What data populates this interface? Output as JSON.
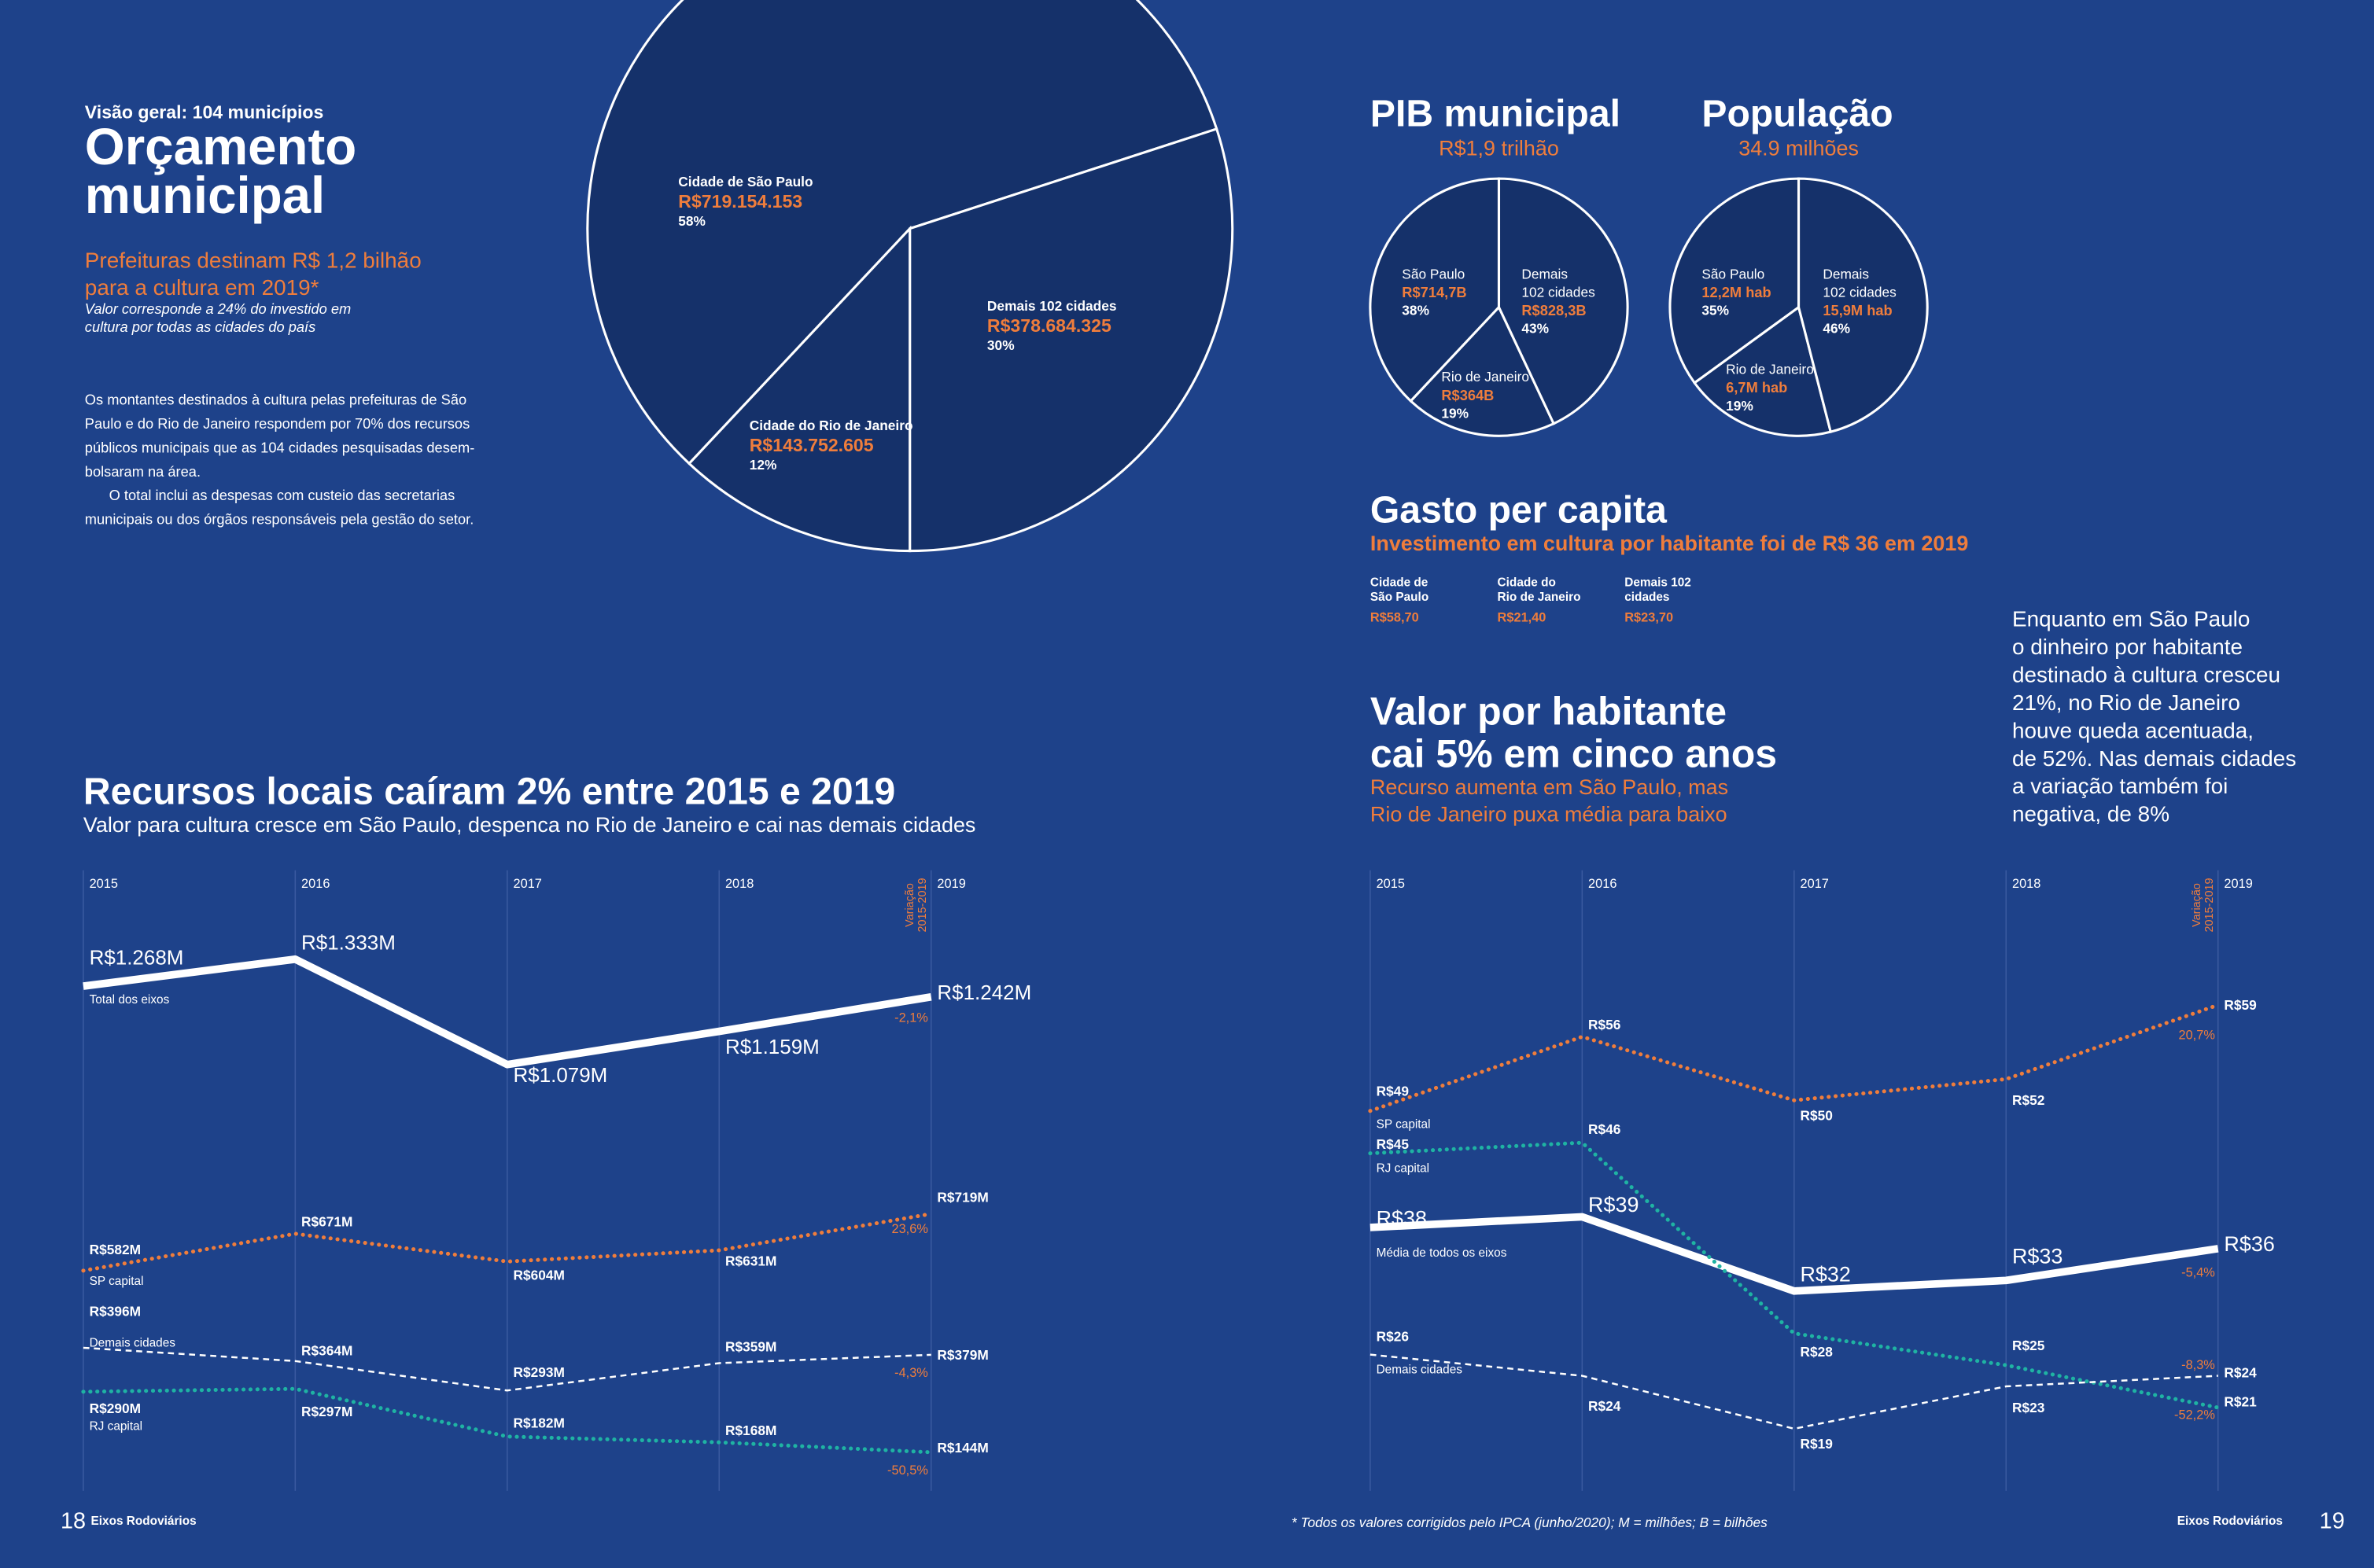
{
  "page": {
    "left": {
      "kicker": "Visão geral: 104 municípios",
      "title": [
        "Orçamento",
        "municipal"
      ],
      "highlight": [
        "Prefeituras destinam R$ 1,2 bilhão",
        "para a cultura em 2019*"
      ],
      "note": [
        "Valor corresponde a 24% do investido em",
        "cultura por todas as cidades do país"
      ],
      "body": [
        "Os montantes destinados à cultura pelas prefeituras de São",
        "Paulo e do Rio de Janeiro respondem por 70% dos recursos",
        "públicos municipais que as 104 cidades pesquisadas desem-",
        "bolsaram na área.",
        "O total inclui as despesas com custeio das secretarias",
        "municipais ou dos órgãos responsáveis pela gestão do setor."
      ]
    },
    "pib": {
      "title": "PIB municipal",
      "subtitle": "R$1,9 trilhão"
    },
    "pop": {
      "title": "População",
      "subtitle": "34.9 milhões"
    },
    "per_capita": {
      "title": "Gasto per capita",
      "subtitle": "Investimento em cultura por habitante foi de R$ 36 em 2019",
      "items": [
        {
          "name": [
            "Cidade de",
            "São Paulo"
          ],
          "value": "R$58,70"
        },
        {
          "name": [
            "Cidade do",
            "Rio de Janeiro"
          ],
          "value": "R$21,40"
        },
        {
          "name": [
            "Demais 102",
            "cidades"
          ],
          "value": "R$23,70"
        }
      ]
    },
    "side_text": [
      "Enquanto em São Paulo",
      "o dinheiro por habitante",
      "destinado à cultura cresceu",
      "21%, no Rio de Janeiro",
      "houve queda acentuada,",
      "de 52%. Nas demais cidades",
      "a variação também foi",
      "negativa, de 8%"
    ],
    "footer": {
      "left_page": "18",
      "left_label": "Eixos Rodoviários",
      "note": "*  Todos os valores corrigidos pelo IPCA (junho/2020); M = milhões; B = bilhões",
      "right_label": "Eixos Rodoviários",
      "right_page": "19"
    }
  },
  "chart_data": [
    {
      "type": "pie",
      "categories": [
        [
          "Cidade de São Paulo"
        ],
        [
          "Cidade do Rio de Janeiro"
        ],
        [
          "Demais 102 cidades"
        ]
      ],
      "amounts": [
        "R$719.154.153",
        "R$143.752.605",
        "R$378.684.325"
      ],
      "values": [
        58,
        12,
        30
      ],
      "value_labels": [
        "58%",
        "12%",
        "30%"
      ],
      "color": "#15316a",
      "edge_color": "#ffffff"
    },
    {
      "type": "pie",
      "categories": [
        [
          "São Paulo"
        ],
        [
          "Rio de Janeiro"
        ],
        [
          "Demais",
          "102 cidades"
        ]
      ],
      "amounts": [
        "R$714,7B",
        "R$364B",
        "R$828,3B"
      ],
      "values": [
        38,
        19,
        43
      ],
      "value_labels": [
        "38%",
        "19%",
        "43%"
      ],
      "color": "#15316a",
      "edge_color": "#ffffff"
    },
    {
      "type": "pie",
      "categories": [
        [
          "São Paulo"
        ],
        [
          "Rio de Janeiro"
        ],
        [
          "Demais",
          "102 cidades"
        ]
      ],
      "amounts": [
        "12,2M hab",
        "6,7M hab",
        "15,9M hab"
      ],
      "values": [
        35,
        19,
        46
      ],
      "value_labels": [
        "35%",
        "19%",
        "46%"
      ],
      "color": "#15316a",
      "edge_color": "#ffffff"
    },
    {
      "type": "line",
      "title": [
        "Recursos locais caíram 2% entre 2015 e 2019"
      ],
      "subtitle": [
        "Valor para cultura cresce em São Paulo, despenca no Rio de Janeiro e cai nas demais cidades"
      ],
      "variation_heading": [
        "Variação",
        "2015-2019"
      ],
      "categories": [
        "2015",
        "2016",
        "2017",
        "2018",
        "2019"
      ],
      "ylim": [
        0,
        1500
      ],
      "grid": true,
      "series": [
        {
          "name": "Total dos eixos",
          "color": "#ffffff",
          "style": "solid",
          "emphasis": true,
          "values": [
            1268,
            1333,
            1079,
            1159,
            1242
          ],
          "value_labels": [
            "R$1.268M",
            "R$1.333M",
            "R$1.079M",
            "R$1.159M",
            "R$1.242M"
          ],
          "variation": "-2,1%"
        },
        {
          "name": "SP capital",
          "color": "#ef7d3c",
          "style": "dotted",
          "values": [
            582,
            671,
            604,
            631,
            719
          ],
          "value_labels": [
            "R$582M",
            "R$671M",
            "R$604M",
            "R$631M",
            "R$719M"
          ],
          "variation": "23,6%"
        },
        {
          "name": "Demais cidades",
          "color": "#ffffff",
          "style": "dashed",
          "values": [
            396,
            364,
            293,
            359,
            379
          ],
          "value_labels": [
            "R$396M",
            "R$364M",
            "R$293M",
            "R$359M",
            "R$379M"
          ],
          "variation": "-4,3%"
        },
        {
          "name": "RJ capital",
          "color": "#1fb3a3",
          "style": "dotted",
          "values": [
            290,
            297,
            182,
            168,
            144
          ],
          "value_labels": [
            "R$290M",
            "R$297M",
            "R$182M",
            "R$168M",
            "R$144M"
          ],
          "variation": "-50,5%"
        }
      ]
    },
    {
      "type": "line",
      "title": [
        "Valor por habitante",
        "cai 5% em cinco anos"
      ],
      "subtitle": [
        "Recurso aumenta em São Paulo, mas",
        "Rio de Janeiro puxa média para baixo"
      ],
      "variation_heading": [
        "Variação",
        "2015-2019"
      ],
      "categories": [
        "2015",
        "2016",
        "2017",
        "2018",
        "2019"
      ],
      "ylim": [
        0,
        70
      ],
      "grid": true,
      "series": [
        {
          "name": "Média de todos os eixos",
          "color": "#ffffff",
          "style": "solid",
          "emphasis": true,
          "values": [
            38,
            39,
            32,
            33,
            36
          ],
          "value_labels": [
            "R$38",
            "R$39",
            "R$32",
            "R$33",
            "R$36"
          ],
          "variation": "-5,4%"
        },
        {
          "name": "SP capital",
          "color": "#ef7d3c",
          "style": "dotted",
          "values": [
            49,
            56,
            50,
            52,
            59
          ],
          "value_labels": [
            "R$49",
            "R$56",
            "R$50",
            "R$52",
            "R$59"
          ],
          "variation": "20,7%"
        },
        {
          "name": "RJ capital",
          "color": "#1fb3a3",
          "style": "dotted",
          "values": [
            45,
            46,
            28,
            25,
            21
          ],
          "value_labels": [
            "R$45",
            "R$46",
            "R$28",
            "R$25",
            "R$21"
          ],
          "variation": "-52,2%"
        },
        {
          "name": "Demais cidades",
          "color": "#ffffff",
          "style": "dashed",
          "values": [
            26,
            24,
            19,
            23,
            24
          ],
          "value_labels": [
            "R$26",
            "R$24",
            "R$19",
            "R$23",
            "R$24"
          ],
          "variation": "-8,3%"
        }
      ]
    }
  ]
}
